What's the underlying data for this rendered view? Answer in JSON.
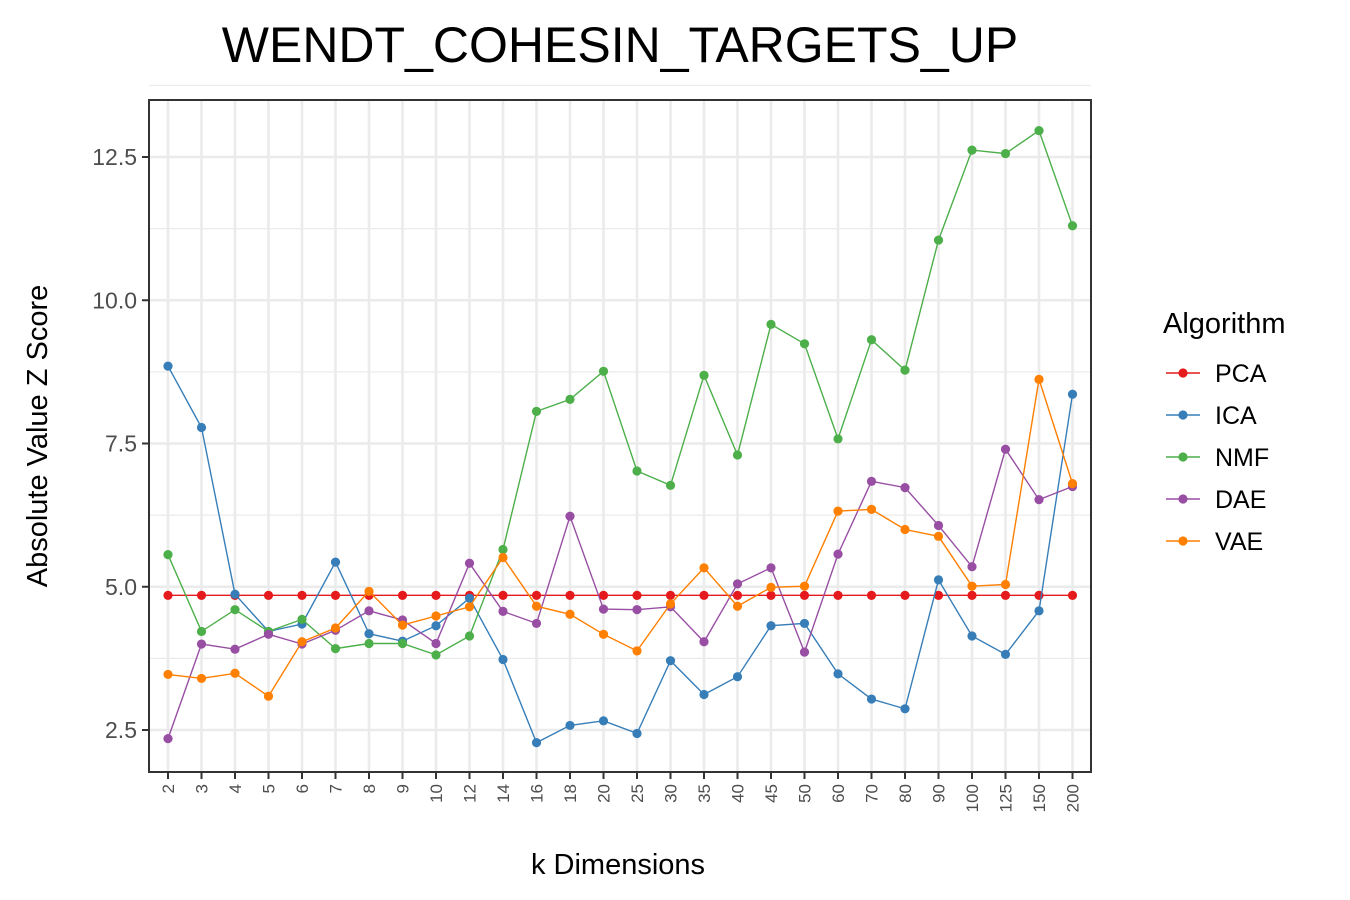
{
  "chart_data": {
    "type": "line",
    "title": "WENDT_COHESIN_TARGETS_UP",
    "xlabel": "k Dimensions",
    "ylabel": "Absolute Value Z Score",
    "categories": [
      "2",
      "3",
      "4",
      "5",
      "6",
      "7",
      "8",
      "9",
      "10",
      "12",
      "14",
      "16",
      "18",
      "20",
      "25",
      "30",
      "35",
      "40",
      "45",
      "50",
      "60",
      "70",
      "80",
      "90",
      "100",
      "125",
      "150",
      "200"
    ],
    "ylim": [
      1.8,
      13.5
    ],
    "yticks": [
      2.5,
      5.0,
      7.5,
      10.0,
      12.5
    ],
    "ytick_labels": [
      "2.5",
      "5.0",
      "7.5",
      "10.0",
      "12.5"
    ],
    "grid": true,
    "legend": {
      "title": "Algorithm",
      "position": "right"
    },
    "series": [
      {
        "name": "PCA",
        "color": "#E41A1C",
        "values": [
          4.85,
          4.85,
          4.85,
          4.85,
          4.85,
          4.85,
          4.85,
          4.85,
          4.85,
          4.85,
          4.85,
          4.85,
          4.85,
          4.85,
          4.85,
          4.85,
          4.85,
          4.85,
          4.85,
          4.85,
          4.85,
          4.85,
          4.85,
          4.85,
          4.85,
          4.85,
          4.85,
          4.85
        ]
      },
      {
        "name": "ICA",
        "color": "#377EB8",
        "values": [
          8.85,
          7.78,
          4.87,
          4.22,
          4.35,
          5.43,
          4.18,
          4.05,
          4.32,
          4.8,
          3.73,
          2.28,
          2.58,
          2.66,
          2.44,
          3.71,
          3.12,
          3.43,
          4.32,
          4.36,
          3.48,
          3.04,
          2.87,
          5.12,
          4.14,
          3.82,
          4.58,
          8.36
        ]
      },
      {
        "name": "NMF",
        "color": "#4DAF4A",
        "values": [
          5.56,
          4.22,
          4.6,
          4.22,
          4.43,
          3.92,
          4.01,
          4.01,
          3.81,
          4.14,
          5.65,
          8.06,
          8.27,
          8.76,
          7.02,
          6.77,
          8.69,
          7.3,
          9.58,
          9.24,
          7.58,
          9.31,
          8.78,
          11.05,
          12.62,
          12.56,
          12.96,
          11.3
        ]
      },
      {
        "name": "DAE",
        "color": "#984EA3",
        "values": [
          2.35,
          4.0,
          3.91,
          4.17,
          4.0,
          4.24,
          4.58,
          4.42,
          4.01,
          5.41,
          4.57,
          4.36,
          6.23,
          4.61,
          4.6,
          4.65,
          4.04,
          5.05,
          5.33,
          3.86,
          5.57,
          6.84,
          6.73,
          6.07,
          5.35,
          7.4,
          6.52,
          6.75
        ]
      },
      {
        "name": "VAE",
        "color": "#FF7F00",
        "values": [
          3.47,
          3.4,
          3.49,
          3.09,
          4.04,
          4.28,
          4.92,
          4.33,
          4.49,
          4.65,
          5.51,
          4.66,
          4.52,
          4.17,
          3.88,
          4.7,
          5.33,
          4.66,
          4.99,
          5.01,
          6.32,
          6.35,
          6.0,
          5.88,
          5.01,
          5.04,
          8.62,
          6.8
        ]
      }
    ]
  }
}
